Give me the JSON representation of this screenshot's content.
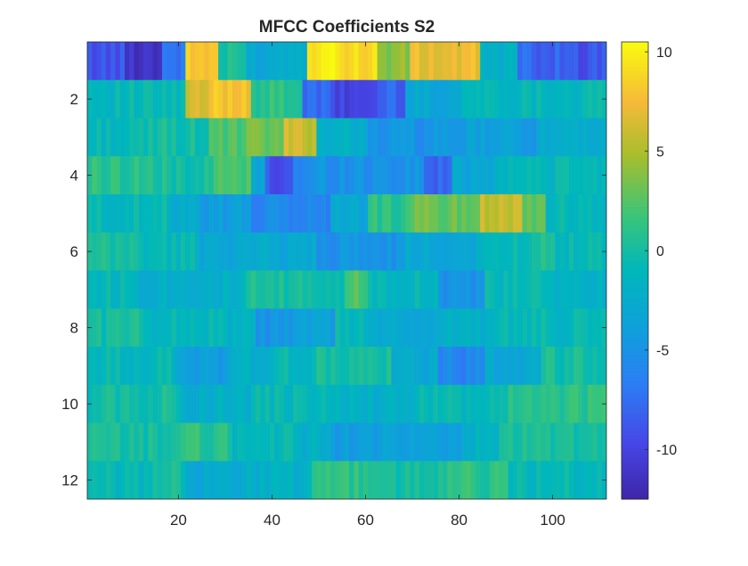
{
  "chart_data": {
    "type": "heatmap",
    "title": "MFCC Coefficients S2",
    "xlabel": "",
    "ylabel": "",
    "x_range": [
      0.5,
      111.5
    ],
    "y_range": [
      0.5,
      12.5
    ],
    "x_ticks": [
      20,
      40,
      60,
      80,
      100
    ],
    "y_ticks": [
      2,
      4,
      6,
      8,
      10,
      12
    ],
    "y_direction": "reverse",
    "grid": false,
    "colormap": "parula",
    "colorbar": {
      "range": [
        -12.5,
        10.5
      ],
      "ticks": [
        10,
        5,
        0,
        -5,
        -10
      ],
      "placement": "right"
    },
    "n_frames": 111,
    "rows": [
      {
        "coefficient": 1,
        "segments": [
          [
            1,
            8,
            -9
          ],
          [
            9,
            16,
            -11
          ],
          [
            17,
            21,
            -7
          ],
          [
            22,
            28,
            8
          ],
          [
            29,
            34,
            0
          ],
          [
            35,
            40,
            -3
          ],
          [
            41,
            47,
            -2
          ],
          [
            48,
            55,
            10
          ],
          [
            56,
            62,
            9
          ],
          [
            63,
            69,
            4
          ],
          [
            70,
            84,
            7
          ],
          [
            85,
            92,
            -2
          ],
          [
            93,
            104,
            -8
          ],
          [
            105,
            111,
            -9
          ]
        ]
      },
      {
        "coefficient": 2,
        "segments": [
          [
            1,
            21,
            -1
          ],
          [
            22,
            26,
            6
          ],
          [
            27,
            35,
            8
          ],
          [
            36,
            46,
            1
          ],
          [
            47,
            52,
            -8
          ],
          [
            53,
            62,
            -10
          ],
          [
            63,
            68,
            -8
          ],
          [
            69,
            80,
            -3
          ],
          [
            81,
            86,
            -1
          ],
          [
            87,
            111,
            -1
          ]
        ]
      },
      {
        "coefficient": 3,
        "segments": [
          [
            1,
            13,
            -1
          ],
          [
            14,
            26,
            0
          ],
          [
            27,
            34,
            2
          ],
          [
            35,
            42,
            3
          ],
          [
            43,
            49,
            6
          ],
          [
            50,
            60,
            -2
          ],
          [
            61,
            80,
            -5
          ],
          [
            81,
            96,
            -4
          ],
          [
            97,
            111,
            -3
          ]
        ]
      },
      {
        "coefficient": 4,
        "segments": [
          [
            1,
            14,
            1
          ],
          [
            15,
            27,
            0
          ],
          [
            28,
            35,
            2
          ],
          [
            36,
            38,
            -3
          ],
          [
            39,
            44,
            -9
          ],
          [
            45,
            48,
            -6
          ],
          [
            49,
            72,
            -5
          ],
          [
            73,
            78,
            -8
          ],
          [
            79,
            87,
            -3
          ],
          [
            88,
            111,
            -1
          ]
        ]
      },
      {
        "coefficient": 5,
        "segments": [
          [
            1,
            17,
            -1
          ],
          [
            18,
            24,
            -2
          ],
          [
            25,
            35,
            -4
          ],
          [
            36,
            52,
            -6
          ],
          [
            53,
            60,
            -3
          ],
          [
            61,
            69,
            1
          ],
          [
            70,
            84,
            3
          ],
          [
            85,
            93,
            6
          ],
          [
            94,
            98,
            3
          ],
          [
            99,
            111,
            -1
          ]
        ]
      },
      {
        "coefficient": 6,
        "segments": [
          [
            1,
            12,
            0
          ],
          [
            13,
            24,
            -1
          ],
          [
            25,
            34,
            -3
          ],
          [
            35,
            49,
            -3
          ],
          [
            50,
            68,
            -5
          ],
          [
            69,
            83,
            -3
          ],
          [
            84,
            95,
            -1
          ],
          [
            96,
            100,
            1
          ],
          [
            101,
            111,
            -1
          ]
        ]
      },
      {
        "coefficient": 7,
        "segments": [
          [
            1,
            10,
            -1
          ],
          [
            11,
            24,
            -2
          ],
          [
            25,
            34,
            -2
          ],
          [
            35,
            55,
            0
          ],
          [
            56,
            60,
            2
          ],
          [
            61,
            75,
            -1
          ],
          [
            76,
            85,
            -5
          ],
          [
            86,
            100,
            -1
          ],
          [
            101,
            111,
            -2
          ]
        ]
      },
      {
        "coefficient": 8,
        "segments": [
          [
            1,
            12,
            0
          ],
          [
            13,
            30,
            -1
          ],
          [
            31,
            36,
            -2
          ],
          [
            37,
            44,
            -5
          ],
          [
            45,
            53,
            -4
          ],
          [
            54,
            60,
            -1
          ],
          [
            61,
            75,
            -3
          ],
          [
            76,
            88,
            -2
          ],
          [
            89,
            111,
            -1
          ]
        ]
      },
      {
        "coefficient": 9,
        "segments": [
          [
            1,
            19,
            -1
          ],
          [
            20,
            31,
            -4
          ],
          [
            32,
            40,
            -2
          ],
          [
            41,
            49,
            -1
          ],
          [
            50,
            65,
            0
          ],
          [
            66,
            75,
            -3
          ],
          [
            76,
            85,
            -6
          ],
          [
            86,
            97,
            -3
          ],
          [
            98,
            111,
            0
          ]
        ]
      },
      {
        "coefficient": 10,
        "segments": [
          [
            1,
            20,
            0
          ],
          [
            21,
            35,
            -2
          ],
          [
            36,
            52,
            -1
          ],
          [
            53,
            70,
            -2
          ],
          [
            71,
            90,
            -1
          ],
          [
            91,
            111,
            1
          ]
        ]
      },
      {
        "coefficient": 11,
        "segments": [
          [
            1,
            18,
            0
          ],
          [
            19,
            30,
            1
          ],
          [
            31,
            44,
            -1
          ],
          [
            45,
            52,
            -2
          ],
          [
            53,
            80,
            -4
          ],
          [
            81,
            88,
            -2
          ],
          [
            89,
            111,
            0
          ]
        ]
      },
      {
        "coefficient": 12,
        "segments": [
          [
            1,
            12,
            -1
          ],
          [
            13,
            21,
            0
          ],
          [
            22,
            33,
            -3
          ],
          [
            34,
            48,
            -2
          ],
          [
            49,
            60,
            1
          ],
          [
            61,
            75,
            0
          ],
          [
            76,
            90,
            1
          ],
          [
            91,
            111,
            -1
          ]
        ]
      }
    ]
  }
}
